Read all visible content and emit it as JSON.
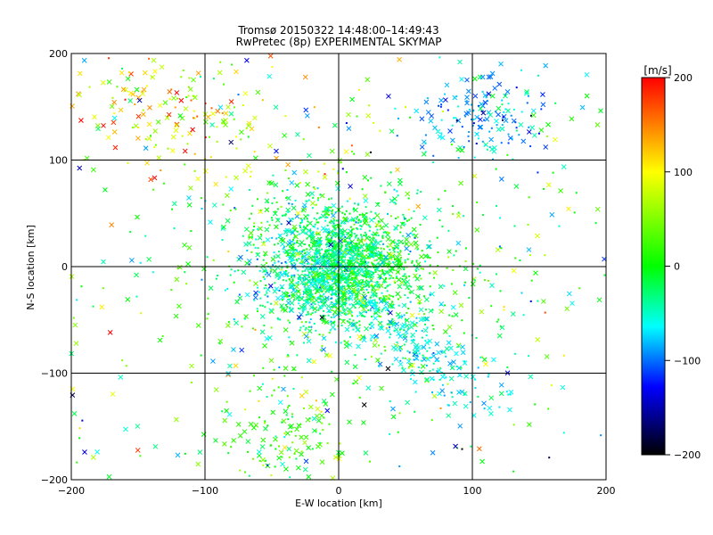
{
  "chart_data": {
    "type": "scatter",
    "title": "Tromsø 20150322 14:48:00–14:49:43",
    "subtitle": "RwPretec (8p) EXPERIMENTAL SKYMAP",
    "xlabel": "E-W location [km]",
    "ylabel": "N-S location [km]",
    "xlim": [
      -200,
      200
    ],
    "ylim": [
      -200,
      200
    ],
    "x_ticks": [
      "−200",
      "−100",
      "0",
      "100",
      "200"
    ],
    "y_ticks": [
      "−200",
      "−100",
      "0",
      "100",
      "200"
    ],
    "grid": true,
    "grid_lines": [
      -100,
      0,
      100
    ],
    "markers": [
      "small dot",
      "x"
    ],
    "colorbar": {
      "label": "[m/s]",
      "range": [
        -200,
        200
      ],
      "ticks": [
        "200",
        "100",
        "0",
        "−100",
        "−200"
      ],
      "colors": [
        "#ff0000",
        "#ffff00",
        "#00ff00",
        "#00ffff",
        "#0000ff",
        "#000000"
      ]
    },
    "point_distribution": {
      "description_center": [
        0,
        0
      ],
      "approx_points": 2800
    }
  }
}
